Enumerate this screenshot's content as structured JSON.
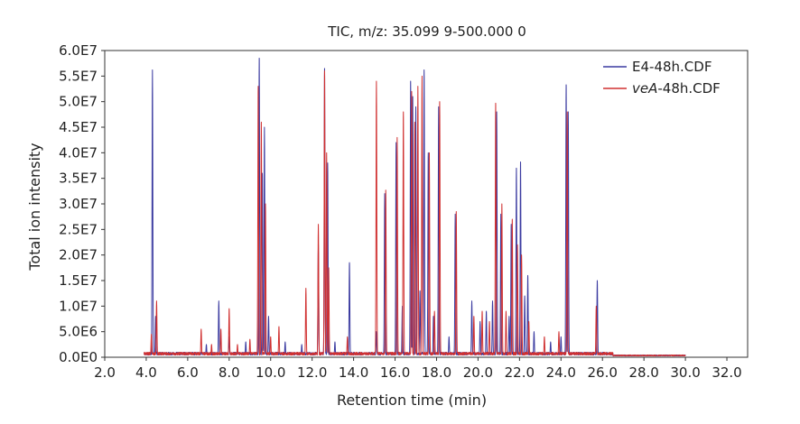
{
  "chart_data": {
    "type": "line",
    "title": "TIC, m/z: 35.099 9-500.000 0",
    "xlabel": "Retention time (min)",
    "ylabel": "Total ion intensity",
    "xlim": [
      2.0,
      33.0
    ],
    "ylim": [
      0,
      60000000.0
    ],
    "x_ticks": [
      2,
      4,
      6,
      8,
      10,
      12,
      14,
      16,
      18,
      20,
      22,
      24,
      26,
      28,
      30,
      32
    ],
    "x_tick_labels": [
      "2.0",
      "4.0",
      "6.0",
      "8.0",
      "10.0",
      "12.0",
      "14.0",
      "16.0",
      "18.0",
      "20.0",
      "22.0",
      "24.0",
      "26.0",
      "28.0",
      "30.0",
      "32.0"
    ],
    "y_ticks": [
      0,
      5000000.0,
      10000000.0,
      15000000.0,
      20000000.0,
      25000000.0,
      30000000.0,
      35000000.0,
      40000000.0,
      45000000.0,
      50000000.0,
      55000000.0,
      60000000.0
    ],
    "y_tick_labels": [
      "0.0E0",
      "5.0E6",
      "1.0E7",
      "1.5E7",
      "2.0E7",
      "2.5E7",
      "3.0E7",
      "3.5E7",
      "4.0E7",
      "4.5E7",
      "5.0E7",
      "5.5E7",
      "6.0E7"
    ],
    "grid": false,
    "legend_position": "top-right",
    "legend_entries": [
      {
        "prefix": "E4",
        "suffix": "-48h.CDF",
        "italic_prefix": false
      },
      {
        "prefix": "veA",
        "suffix": "-48h.CDF",
        "italic_prefix": true
      }
    ],
    "x_range_start": 3.9,
    "x_range_end": 30.0,
    "baseline": 700000.0,
    "series": [
      {
        "name": "E4-48h.CDF",
        "color": "#3a3aa0",
        "peaks": [
          {
            "x": 4.3,
            "y": 56200000.0
          },
          {
            "x": 4.45,
            "y": 8000000.0
          },
          {
            "x": 6.9,
            "y": 2500000.0
          },
          {
            "x": 7.5,
            "y": 11000000.0
          },
          {
            "x": 8.0,
            "y": 4000000.0
          },
          {
            "x": 8.8,
            "y": 3000000.0
          },
          {
            "x": 9.45,
            "y": 58500000.0
          },
          {
            "x": 9.6,
            "y": 36000000.0
          },
          {
            "x": 9.7,
            "y": 45000000.0
          },
          {
            "x": 9.9,
            "y": 8000000.0
          },
          {
            "x": 10.7,
            "y": 3000000.0
          },
          {
            "x": 11.5,
            "y": 2500000.0
          },
          {
            "x": 12.3,
            "y": 22000000.0
          },
          {
            "x": 12.6,
            "y": 56500000.0
          },
          {
            "x": 12.75,
            "y": 38000000.0
          },
          {
            "x": 13.1,
            "y": 3000000.0
          },
          {
            "x": 13.8,
            "y": 18500000.0
          },
          {
            "x": 15.1,
            "y": 5000000.0
          },
          {
            "x": 15.5,
            "y": 32000000.0
          },
          {
            "x": 16.05,
            "y": 42000000.0
          },
          {
            "x": 16.35,
            "y": 10000000.0
          },
          {
            "x": 16.75,
            "y": 54000000.0
          },
          {
            "x": 16.85,
            "y": 51000000.0
          },
          {
            "x": 17.0,
            "y": 49000000.0
          },
          {
            "x": 17.2,
            "y": 13000000.0
          },
          {
            "x": 17.4,
            "y": 56200000.0
          },
          {
            "x": 17.6,
            "y": 40000000.0
          },
          {
            "x": 17.85,
            "y": 8000000.0
          },
          {
            "x": 18.1,
            "y": 49000000.0
          },
          {
            "x": 18.6,
            "y": 4000000.0
          },
          {
            "x": 18.9,
            "y": 28000000.0
          },
          {
            "x": 19.7,
            "y": 11000000.0
          },
          {
            "x": 20.1,
            "y": 7000000.0
          },
          {
            "x": 20.4,
            "y": 9000000.0
          },
          {
            "x": 20.7,
            "y": 11000000.0
          },
          {
            "x": 20.9,
            "y": 48000000.0
          },
          {
            "x": 21.1,
            "y": 28000000.0
          },
          {
            "x": 21.5,
            "y": 8000000.0
          },
          {
            "x": 21.6,
            "y": 26000000.0
          },
          {
            "x": 21.85,
            "y": 37000000.0
          },
          {
            "x": 22.05,
            "y": 38200000.0
          },
          {
            "x": 22.25,
            "y": 12000000.0
          },
          {
            "x": 22.4,
            "y": 16000000.0
          },
          {
            "x": 22.7,
            "y": 5000000.0
          },
          {
            "x": 23.5,
            "y": 3000000.0
          },
          {
            "x": 24.0,
            "y": 4000000.0
          },
          {
            "x": 24.25,
            "y": 53300000.0
          },
          {
            "x": 24.35,
            "y": 48000000.0
          },
          {
            "x": 25.75,
            "y": 15000000.0
          }
        ]
      },
      {
        "name": "veA-48h.CDF",
        "color": "#d03030",
        "peaks": [
          {
            "x": 4.25,
            "y": 4500000.0
          },
          {
            "x": 4.5,
            "y": 11000000.0
          },
          {
            "x": 6.65,
            "y": 5500000.0
          },
          {
            "x": 7.15,
            "y": 2500000.0
          },
          {
            "x": 7.6,
            "y": 5500000.0
          },
          {
            "x": 8.0,
            "y": 9500000.0
          },
          {
            "x": 8.4,
            "y": 2500000.0
          },
          {
            "x": 9.0,
            "y": 3500000.0
          },
          {
            "x": 9.4,
            "y": 53000000.0
          },
          {
            "x": 9.55,
            "y": 46000000.0
          },
          {
            "x": 9.75,
            "y": 30000000.0
          },
          {
            "x": 10.0,
            "y": 4000000.0
          },
          {
            "x": 10.4,
            "y": 6000000.0
          },
          {
            "x": 11.7,
            "y": 13500000.0
          },
          {
            "x": 12.3,
            "y": 26000000.0
          },
          {
            "x": 12.6,
            "y": 56000000.0
          },
          {
            "x": 12.7,
            "y": 40000000.0
          },
          {
            "x": 12.8,
            "y": 17500000.0
          },
          {
            "x": 13.7,
            "y": 4000000.0
          },
          {
            "x": 15.1,
            "y": 54000000.0
          },
          {
            "x": 15.55,
            "y": 32700000.0
          },
          {
            "x": 16.1,
            "y": 43000000.0
          },
          {
            "x": 16.4,
            "y": 48000000.0
          },
          {
            "x": 16.8,
            "y": 52000000.0
          },
          {
            "x": 16.95,
            "y": 46000000.0
          },
          {
            "x": 17.1,
            "y": 53000000.0
          },
          {
            "x": 17.3,
            "y": 55000000.0
          },
          {
            "x": 17.65,
            "y": 40000000.0
          },
          {
            "x": 17.9,
            "y": 9000000.0
          },
          {
            "x": 18.15,
            "y": 50000000.0
          },
          {
            "x": 18.95,
            "y": 28500000.0
          },
          {
            "x": 19.8,
            "y": 8000000.0
          },
          {
            "x": 20.2,
            "y": 9000000.0
          },
          {
            "x": 20.55,
            "y": 7000000.0
          },
          {
            "x": 20.85,
            "y": 49700000.0
          },
          {
            "x": 21.15,
            "y": 30000000.0
          },
          {
            "x": 21.35,
            "y": 9000000.0
          },
          {
            "x": 21.65,
            "y": 27000000.0
          },
          {
            "x": 21.9,
            "y": 22000000.0
          },
          {
            "x": 22.1,
            "y": 20000000.0
          },
          {
            "x": 22.45,
            "y": 7000000.0
          },
          {
            "x": 23.2,
            "y": 4000000.0
          },
          {
            "x": 23.9,
            "y": 5000000.0
          },
          {
            "x": 24.3,
            "y": 48000000.0
          },
          {
            "x": 25.7,
            "y": 10000000.0
          }
        ]
      }
    ]
  }
}
